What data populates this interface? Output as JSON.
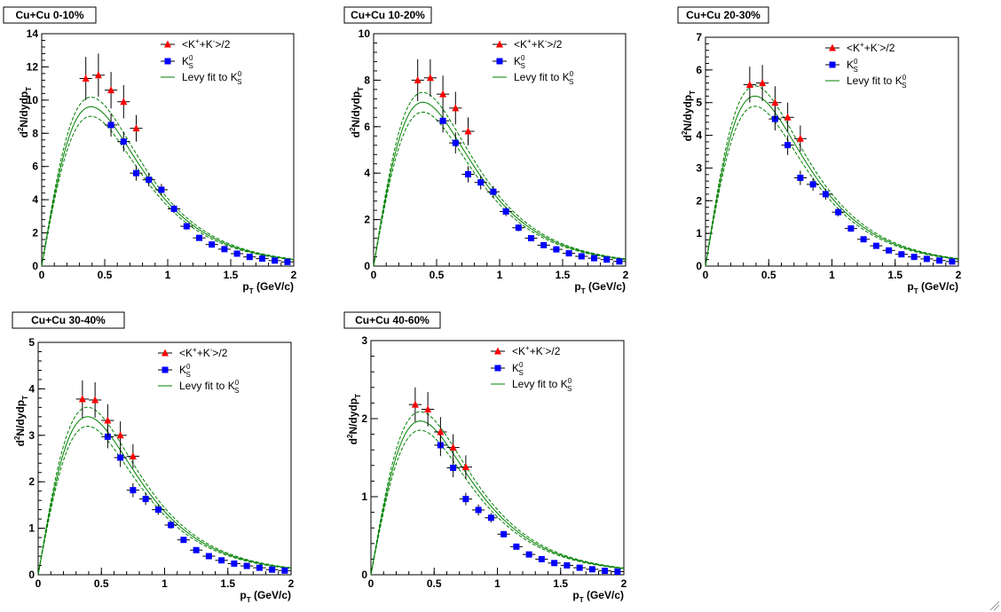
{
  "colors": {
    "kaon_charged": "#ff0000",
    "k0s": "#0000ff",
    "fit": "#008000"
  },
  "legend": {
    "charged": {
      "pre": "<K",
      "sup1": "+",
      "mid": "+K",
      "sup2": "-",
      "post": ">/2"
    },
    "k0s": {
      "base": "K",
      "sup": "0",
      "sub": "S"
    },
    "fit": {
      "text": "Levy fit to K",
      "sup": "0",
      "sub": "S"
    }
  },
  "axis": {
    "ylabel_base": "d",
    "ylabel_sup": "2",
    "ylabel_mid": "N/dydp",
    "ylabel_sub": "T",
    "xlabel_base": "p",
    "xlabel_sub": "T",
    "xlabel_unit": "(GeV/c)"
  },
  "chart_data": [
    {
      "type": "scatter",
      "title": "Cu+Cu 0-10%",
      "xlim": [
        0,
        2
      ],
      "ylim": [
        0,
        14
      ],
      "xticks": [
        0,
        0.5,
        1,
        1.5,
        2
      ],
      "xtick_labels": [
        "0",
        "0.5",
        "1",
        "1.5",
        "2"
      ],
      "yticks": [
        0,
        2,
        4,
        6,
        8,
        10,
        12,
        14
      ],
      "ytick_labels": [
        "0",
        "2",
        "4",
        "6",
        "8",
        "10",
        "12",
        "14"
      ],
      "xlabel": "pT (GeV/c)",
      "ylabel": "d2N/dydpT",
      "series": [
        {
          "name": "<K+ + K->/2",
          "marker": "triangle",
          "x": [
            0.35,
            0.45,
            0.55,
            0.65,
            0.75
          ],
          "y": [
            11.3,
            11.5,
            10.6,
            9.9,
            8.3
          ],
          "err": [
            1.3,
            1.3,
            1.1,
            1.0,
            0.8
          ]
        },
        {
          "name": "K0S",
          "marker": "square",
          "x": [
            0.55,
            0.65,
            0.75,
            0.85,
            0.95,
            1.05,
            1.15,
            1.25,
            1.35,
            1.45,
            1.55,
            1.65,
            1.75,
            1.85,
            1.95
          ],
          "y": [
            8.5,
            7.5,
            5.6,
            5.2,
            4.6,
            3.45,
            2.4,
            1.7,
            1.3,
            1.02,
            0.75,
            0.55,
            0.45,
            0.33,
            0.25
          ],
          "err": [
            0.7,
            0.6,
            0.45,
            0.4,
            0.35,
            0.25,
            0.2,
            0.15,
            0.1,
            0.08,
            0.07,
            0.05,
            0.04,
            0.03,
            0.03
          ]
        },
        {
          "name": "Levy fit to K0S",
          "style": "line",
          "peak": 9.6,
          "band": 0.06
        }
      ]
    },
    {
      "type": "scatter",
      "title": "Cu+Cu 10-20%",
      "xlim": [
        0,
        2
      ],
      "ylim": [
        0,
        10
      ],
      "xticks": [
        0,
        0.5,
        1,
        1.5,
        2
      ],
      "xtick_labels": [
        "0",
        "0.5",
        "1",
        "1.5",
        "2"
      ],
      "yticks": [
        0,
        2,
        4,
        6,
        8,
        10
      ],
      "ytick_labels": [
        "0",
        "2",
        "4",
        "6",
        "8",
        "10"
      ],
      "xlabel": "pT (GeV/c)",
      "ylabel": "d2N/dydpT",
      "series": [
        {
          "name": "<K+ + K->/2",
          "marker": "triangle",
          "x": [
            0.35,
            0.45,
            0.55,
            0.65,
            0.75
          ],
          "y": [
            8.0,
            8.1,
            7.4,
            6.8,
            5.8
          ],
          "err": [
            0.9,
            0.8,
            0.8,
            0.7,
            0.6
          ]
        },
        {
          "name": "K0S",
          "marker": "square",
          "x": [
            0.55,
            0.65,
            0.75,
            0.85,
            0.95,
            1.05,
            1.15,
            1.25,
            1.35,
            1.45,
            1.55,
            1.65,
            1.75,
            1.85,
            1.95
          ],
          "y": [
            6.25,
            5.3,
            3.95,
            3.6,
            3.2,
            2.35,
            1.65,
            1.2,
            0.9,
            0.72,
            0.55,
            0.42,
            0.34,
            0.28,
            0.2
          ],
          "err": [
            0.5,
            0.45,
            0.35,
            0.3,
            0.25,
            0.2,
            0.15,
            0.1,
            0.08,
            0.06,
            0.05,
            0.04,
            0.03,
            0.03,
            0.02
          ]
        },
        {
          "name": "Levy fit to K0S",
          "style": "line",
          "peak": 7.05,
          "band": 0.06
        }
      ]
    },
    {
      "type": "scatter",
      "title": "Cu+Cu 20-30%",
      "xlim": [
        0,
        2
      ],
      "ylim": [
        0,
        7
      ],
      "xticks": [
        0,
        0.5,
        1,
        1.5,
        2
      ],
      "xtick_labels": [
        "0",
        "0.5",
        "1",
        "1.5",
        "2"
      ],
      "yticks": [
        0,
        1,
        2,
        3,
        4,
        5,
        6,
        7
      ],
      "ytick_labels": [
        "0",
        "1",
        "2",
        "3",
        "4",
        "5",
        "6",
        "7"
      ],
      "xlabel": "pT (GeV/c)",
      "ylabel": "d2N/dydpT",
      "series": [
        {
          "name": "<K+ + K->/2",
          "marker": "triangle",
          "x": [
            0.35,
            0.45,
            0.55,
            0.65,
            0.75
          ],
          "y": [
            5.55,
            5.6,
            5.0,
            4.55,
            3.9
          ],
          "err": [
            0.55,
            0.55,
            0.5,
            0.45,
            0.4
          ]
        },
        {
          "name": "K0S",
          "marker": "square",
          "x": [
            0.55,
            0.65,
            0.75,
            0.85,
            0.95,
            1.05,
            1.15,
            1.25,
            1.35,
            1.45,
            1.55,
            1.65,
            1.75,
            1.85,
            1.95
          ],
          "y": [
            4.5,
            3.7,
            2.7,
            2.5,
            2.2,
            1.65,
            1.15,
            0.82,
            0.62,
            0.48,
            0.36,
            0.28,
            0.22,
            0.17,
            0.14
          ],
          "err": [
            0.35,
            0.3,
            0.22,
            0.2,
            0.17,
            0.13,
            0.1,
            0.07,
            0.05,
            0.04,
            0.03,
            0.03,
            0.02,
            0.02,
            0.02
          ]
        },
        {
          "name": "Levy fit to K0S",
          "style": "line",
          "peak": 5.2,
          "band": 0.06
        }
      ]
    },
    {
      "type": "scatter",
      "title": "Cu+Cu 30-40%",
      "xlim": [
        0,
        2
      ],
      "ylim": [
        0,
        5
      ],
      "xticks": [
        0,
        0.5,
        1,
        1.5,
        2
      ],
      "xtick_labels": [
        "0",
        "0.5",
        "1",
        "1.5",
        "2"
      ],
      "yticks": [
        0,
        1,
        2,
        3,
        4,
        5
      ],
      "ytick_labels": [
        "0",
        "1",
        "2",
        "3",
        "4",
        "5"
      ],
      "xlabel": "pT (GeV/c)",
      "ylabel": "d2N/dydpT",
      "series": [
        {
          "name": "<K+ + K->/2",
          "marker": "triangle",
          "x": [
            0.35,
            0.45,
            0.55,
            0.65,
            0.75
          ],
          "y": [
            3.78,
            3.76,
            3.32,
            3.0,
            2.55
          ],
          "err": [
            0.4,
            0.38,
            0.35,
            0.3,
            0.26
          ]
        },
        {
          "name": "K0S",
          "marker": "square",
          "x": [
            0.55,
            0.65,
            0.75,
            0.85,
            0.95,
            1.05,
            1.15,
            1.25,
            1.35,
            1.45,
            1.55,
            1.65,
            1.75,
            1.85,
            1.95
          ],
          "y": [
            2.97,
            2.52,
            1.82,
            1.63,
            1.4,
            1.07,
            0.75,
            0.53,
            0.4,
            0.31,
            0.24,
            0.19,
            0.15,
            0.11,
            0.09
          ],
          "err": [
            0.25,
            0.2,
            0.15,
            0.13,
            0.11,
            0.08,
            0.06,
            0.04,
            0.03,
            0.03,
            0.02,
            0.02,
            0.01,
            0.01,
            0.01
          ]
        },
        {
          "name": "Levy fit to K0S",
          "style": "line",
          "peak": 3.4,
          "band": 0.06
        }
      ]
    },
    {
      "type": "scatter",
      "title": "Cu+Cu 40-60%",
      "xlim": [
        0,
        2
      ],
      "ylim": [
        0,
        3
      ],
      "xticks": [
        0,
        0.5,
        1,
        1.5,
        2
      ],
      "xtick_labels": [
        "0",
        "0.5",
        "1",
        "1.5",
        "2"
      ],
      "yticks": [
        0,
        1,
        2,
        3
      ],
      "ytick_labels": [
        "0",
        "1",
        "2",
        "3"
      ],
      "xlabel": "pT (GeV/c)",
      "ylabel": "d2N/dydpT",
      "series": [
        {
          "name": "<K+ + K->/2",
          "marker": "triangle",
          "x": [
            0.35,
            0.45,
            0.55,
            0.65,
            0.75
          ],
          "y": [
            2.18,
            2.12,
            1.83,
            1.63,
            1.38
          ],
          "err": [
            0.22,
            0.22,
            0.19,
            0.17,
            0.15
          ]
        },
        {
          "name": "K0S",
          "marker": "square",
          "x": [
            0.55,
            0.65,
            0.75,
            0.85,
            0.95,
            1.05,
            1.15,
            1.25,
            1.35,
            1.45,
            1.55,
            1.65,
            1.75,
            1.85,
            1.95
          ],
          "y": [
            1.66,
            1.37,
            0.97,
            0.83,
            0.73,
            0.52,
            0.36,
            0.26,
            0.2,
            0.15,
            0.12,
            0.09,
            0.07,
            0.05,
            0.04
          ],
          "err": [
            0.14,
            0.12,
            0.08,
            0.07,
            0.06,
            0.04,
            0.03,
            0.02,
            0.02,
            0.01,
            0.01,
            0.01,
            0.01,
            0.01,
            0.01
          ]
        },
        {
          "name": "Levy fit to K0S",
          "style": "line",
          "peak": 1.97,
          "band": 0.06
        }
      ]
    }
  ]
}
